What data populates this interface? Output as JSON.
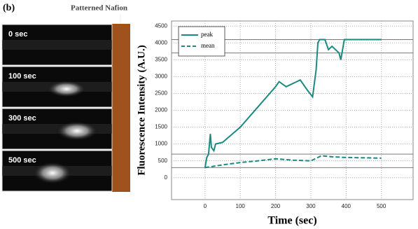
{
  "panel_label": "(b)",
  "annotation": "Patterned Nafion",
  "frames": [
    "0 sec",
    "100 sec",
    "300 sec",
    "500 sec"
  ],
  "chart_data": {
    "type": "line",
    "x_label": "Time (sec)",
    "y_label": "Fluorescence Intensity (A.U.)",
    "xlim": [
      -95,
      590
    ],
    "ylim": [
      -650,
      4650
    ],
    "xticks": [
      0,
      100,
      200,
      300,
      400,
      500
    ],
    "yticks": [
      0,
      500,
      1000,
      1500,
      2000,
      2500,
      3000,
      3500,
      4000,
      4500
    ],
    "grid": true,
    "legend": "upper left",
    "hlines": [
      4100,
      3700,
      700,
      300
    ],
    "series": [
      {
        "name": "peak",
        "color": "#1a8a80",
        "dash": false,
        "x": [
          0,
          5,
          10,
          15,
          18,
          25,
          30,
          50,
          100,
          150,
          200,
          210,
          230,
          260,
          270,
          290,
          305,
          315,
          320,
          325,
          340,
          350,
          360,
          380,
          385,
          395,
          500
        ],
        "values": [
          300,
          600,
          700,
          1300,
          900,
          800,
          1000,
          1050,
          1500,
          2100,
          2700,
          2850,
          2700,
          2850,
          2900,
          2600,
          2400,
          3200,
          4000,
          4100,
          4100,
          3800,
          3900,
          3700,
          3500,
          4100,
          4100
        ]
      },
      {
        "name": "mean",
        "color": "#1a8a80",
        "dash": true,
        "x": [
          0,
          50,
          100,
          150,
          200,
          250,
          300,
          330,
          360,
          400,
          500
        ],
        "values": [
          300,
          380,
          450,
          500,
          560,
          520,
          500,
          650,
          620,
          600,
          580
        ]
      }
    ]
  }
}
